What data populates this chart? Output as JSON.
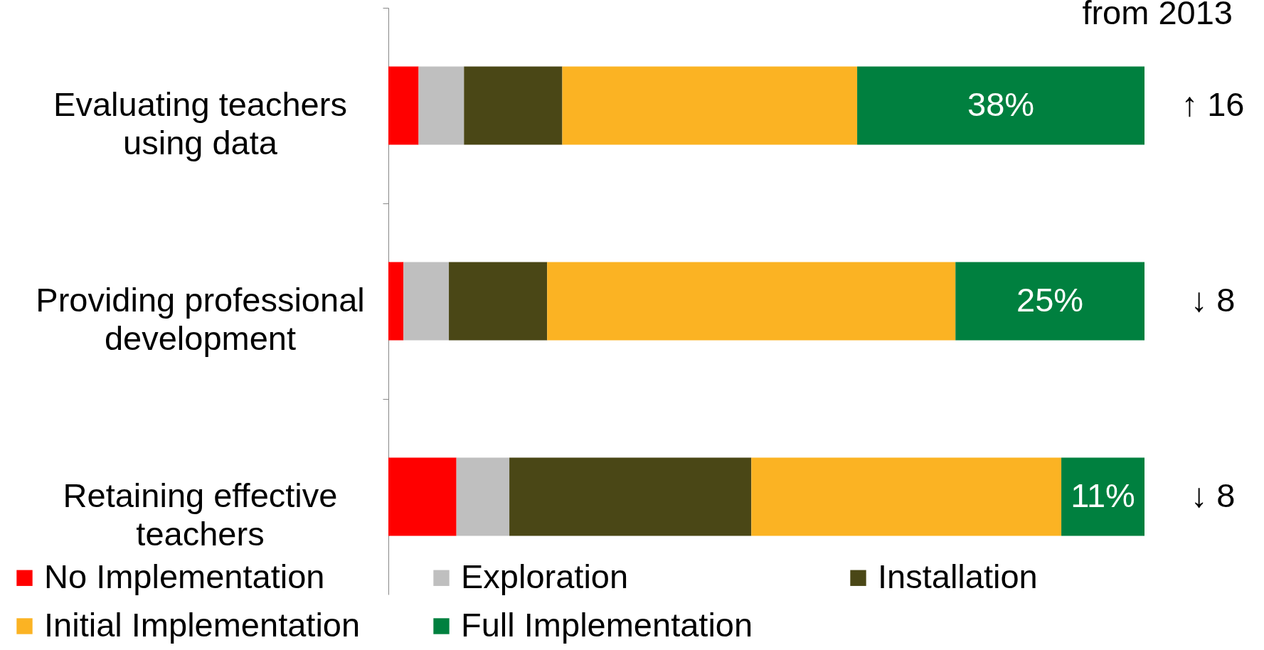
{
  "chart_data": {
    "type": "bar",
    "orientation": "horizontal",
    "stacked": true,
    "legend": "bottom",
    "categories": [
      "Evaluating  teachers\nusing data",
      "Providing professional\ndevelopment",
      "Retaining effective\nteachers"
    ],
    "series": [
      {
        "name": "No Implementation",
        "color": "#ff0000",
        "values": [
          4,
          2,
          9
        ]
      },
      {
        "name": "Exploration",
        "color": "#bfbfbf",
        "values": [
          6,
          6,
          7
        ]
      },
      {
        "name": "Installation",
        "color": "#4a4716",
        "values": [
          13,
          13,
          32
        ]
      },
      {
        "name": "Initial Implementation",
        "color": "#fbb323",
        "values": [
          39,
          54,
          41
        ]
      },
      {
        "name": "Full Implementation",
        "color": "#00803f",
        "values": [
          38,
          25,
          11
        ],
        "value_labels": [
          "38%",
          "25%",
          "11%"
        ]
      }
    ],
    "annotations": [
      "from 2013",
      "↑ 16",
      "↓ 8",
      "↓ 8"
    ]
  }
}
